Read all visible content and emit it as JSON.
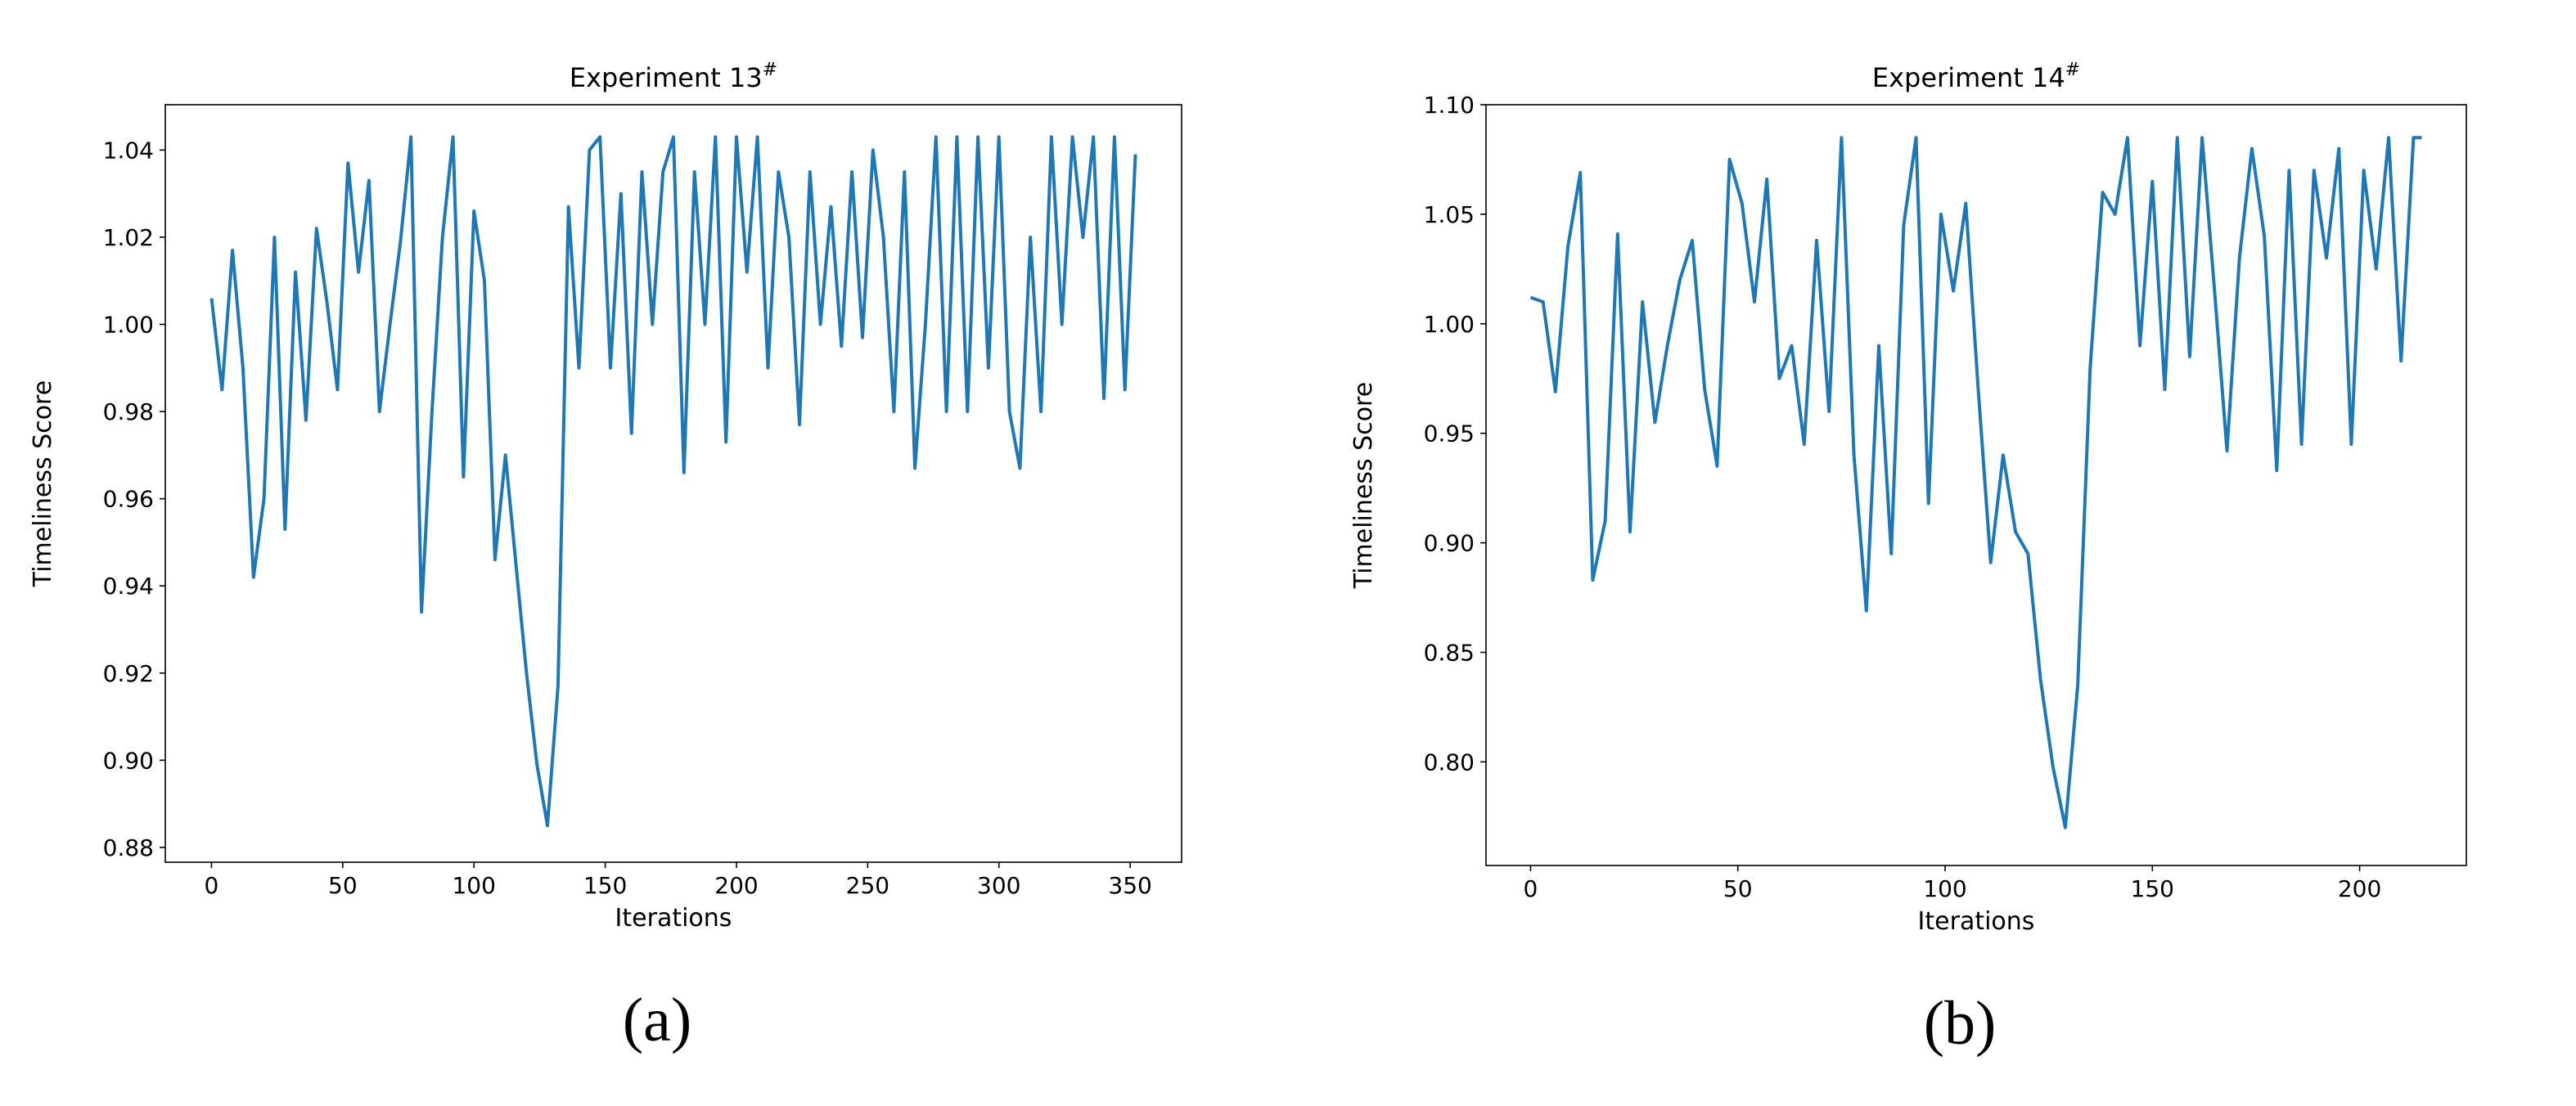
{
  "chart_data": [
    {
      "type": "line",
      "title": "Experiment  13",
      "title_superscript": "#",
      "xlabel": "Iterations",
      "ylabel": "Timeliness Score",
      "caption": "(a)",
      "color": "#1f77b4",
      "x": [
        0,
        4,
        8,
        12,
        16,
        20,
        24,
        28,
        32,
        36,
        40,
        44,
        48,
        52,
        56,
        60,
        64,
        68,
        72,
        76,
        80,
        84,
        88,
        92,
        96,
        100,
        104,
        108,
        112,
        116,
        120,
        124,
        128,
        132,
        136,
        140,
        144,
        148,
        152,
        156,
        160,
        164,
        168,
        172,
        176,
        180,
        184,
        188,
        192,
        196,
        200,
        204,
        208,
        212,
        216,
        220,
        224,
        228,
        232,
        236,
        240,
        244,
        248,
        252,
        256,
        260,
        264,
        268,
        272,
        276,
        280,
        284,
        288,
        292,
        296,
        300,
        304,
        308,
        312,
        316,
        320,
        324,
        328,
        332,
        336,
        340,
        344,
        348,
        352
      ],
      "values": [
        1.006,
        0.985,
        1.017,
        0.99,
        0.942,
        0.96,
        1.02,
        0.953,
        1.012,
        0.978,
        1.022,
        1.005,
        0.985,
        1.037,
        1.012,
        1.033,
        0.98,
        1.0,
        1.019,
        1.043,
        0.934,
        0.98,
        1.02,
        1.043,
        0.965,
        1.026,
        1.01,
        0.946,
        0.97,
        0.945,
        0.92,
        0.899,
        0.885,
        0.917,
        1.027,
        0.99,
        1.04,
        1.043,
        0.99,
        1.03,
        0.975,
        1.035,
        1.0,
        1.035,
        1.043,
        0.966,
        1.035,
        1.0,
        1.043,
        0.973,
        1.043,
        1.012,
        1.043,
        0.99,
        1.035,
        1.02,
        0.977,
        1.035,
        1.0,
        1.027,
        0.995,
        1.035,
        0.997,
        1.04,
        1.02,
        0.98,
        1.035,
        0.967,
        1.0,
        1.043,
        0.98,
        1.043,
        0.98,
        1.043,
        0.99,
        1.043,
        0.98,
        0.967,
        1.02,
        0.98,
        1.043,
        1.0,
        1.043,
        1.02,
        1.043,
        0.983,
        1.043,
        0.985,
        1.039
      ],
      "xlim": [
        -17.6,
        369.6
      ],
      "xticks": [
        0,
        50,
        100,
        150,
        200,
        250,
        300,
        350
      ],
      "ylim": [
        0.8766,
        1.0504
      ],
      "yticks": [
        0.88,
        {
          "value": 0.9,
          "label": "0.90"
        },
        0.92,
        0.94,
        0.96,
        0.98,
        {
          "value": 1.0,
          "label": "1.00"
        },
        1.02,
        1.04
      ]
    },
    {
      "type": "line",
      "title": "Experiment  14",
      "title_superscript": "#",
      "xlabel": "Iterations",
      "ylabel": "Timeliness Score",
      "caption": "(b)",
      "color": "#1f77b4",
      "x": [
        0,
        3,
        6,
        9,
        12,
        15,
        18,
        21,
        24,
        27,
        30,
        33,
        36,
        39,
        42,
        45,
        48,
        51,
        54,
        57,
        60,
        63,
        66,
        69,
        72,
        75,
        78,
        81,
        84,
        87,
        90,
        93,
        96,
        99,
        102,
        105,
        108,
        111,
        114,
        117,
        120,
        123,
        126,
        129,
        132,
        135,
        138,
        141,
        144,
        147,
        150,
        153,
        156,
        159,
        162,
        165,
        168,
        171,
        174,
        177,
        180,
        183,
        186,
        189,
        192,
        195,
        198,
        201,
        204,
        207,
        210,
        213,
        215
      ],
      "values": [
        1.012,
        1.01,
        0.969,
        1.035,
        1.069,
        0.883,
        0.91,
        1.041,
        0.905,
        1.01,
        0.955,
        0.99,
        1.02,
        1.038,
        0.97,
        0.935,
        1.075,
        1.055,
        1.01,
        1.066,
        0.975,
        0.99,
        0.945,
        1.038,
        0.96,
        1.085,
        0.94,
        0.869,
        0.99,
        0.895,
        1.045,
        1.085,
        0.918,
        1.05,
        1.015,
        1.055,
        0.97,
        0.891,
        0.94,
        0.905,
        0.895,
        0.838,
        0.798,
        0.77,
        0.835,
        0.98,
        1.06,
        1.05,
        1.085,
        0.99,
        1.065,
        0.97,
        1.085,
        0.985,
        1.085,
        1.015,
        0.942,
        1.03,
        1.08,
        1.04,
        0.933,
        1.07,
        0.945,
        1.07,
        1.03,
        1.08,
        0.945,
        1.07,
        1.025,
        1.085,
        0.983,
        1.085,
        1.085
      ],
      "xlim": [
        -10.75,
        225.75
      ],
      "xticks": [
        0,
        50,
        100,
        150,
        200
      ],
      "ylim": [
        0.7527,
        1.1
      ],
      "yticks": [
        {
          "value": 0.8,
          "label": "0.80"
        },
        0.85,
        {
          "value": 0.9,
          "label": "0.90"
        },
        0.95,
        {
          "value": 1.0,
          "label": "1.00"
        },
        1.05,
        {
          "value": 1.1,
          "label": "1.10"
        }
      ]
    }
  ]
}
